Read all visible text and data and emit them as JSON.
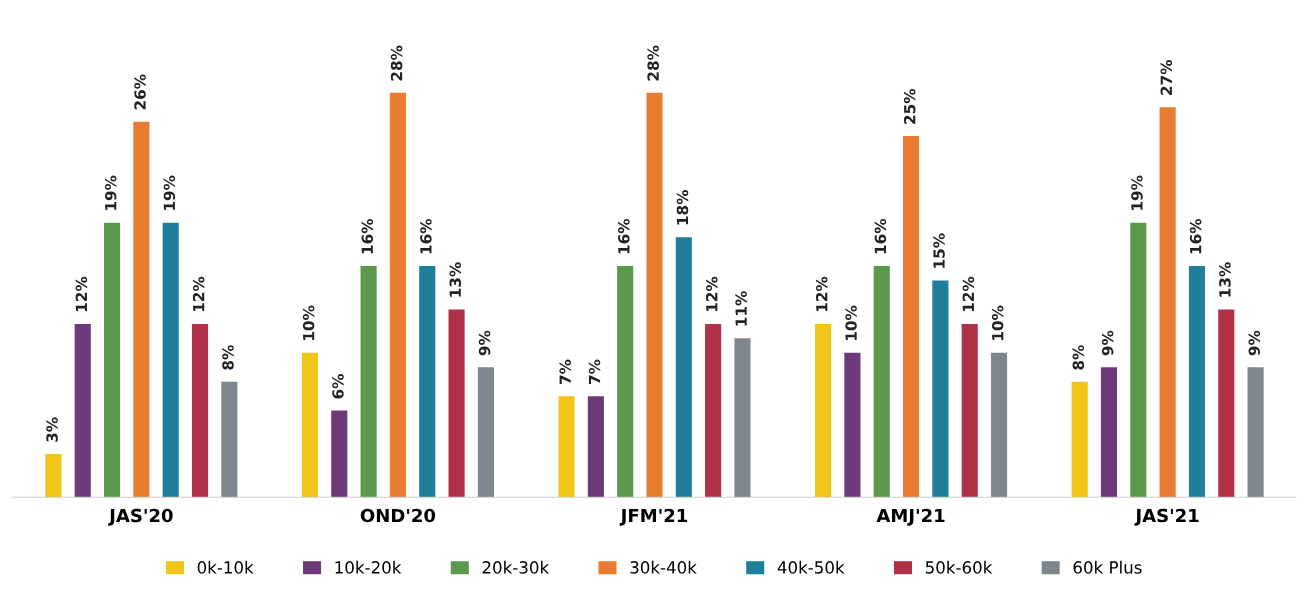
{
  "chart_data": {
    "type": "bar",
    "categories": [
      "JAS'20",
      "OND'20",
      "JFM'21",
      "AMJ'21",
      "JAS'21"
    ],
    "series": [
      {
        "name": "0k-10k",
        "color": "#f0c419",
        "values": [
          3,
          10,
          7,
          12,
          8
        ],
        "value_labels": [
          "3%",
          "10%",
          "7%",
          "12%",
          "8%"
        ]
      },
      {
        "name": "10k-20k",
        "color": "#6c3a78",
        "values": [
          12,
          6,
          7,
          10,
          9
        ],
        "value_labels": [
          "12%",
          "6%",
          "7%",
          "10%",
          "9%"
        ]
      },
      {
        "name": "20k-30k",
        "color": "#5b9a4c",
        "values": [
          19,
          16,
          16,
          16,
          19
        ],
        "value_labels": [
          "19%",
          "16%",
          "16%",
          "16%",
          "19%"
        ]
      },
      {
        "name": "30k-40k",
        "color": "#e97c30",
        "values": [
          26,
          28,
          28,
          25,
          27
        ],
        "value_labels": [
          "26%",
          "28%",
          "28%",
          "25%",
          "27%"
        ]
      },
      {
        "name": "40k-50k",
        "color": "#1f7f9b",
        "values": [
          19,
          16,
          18,
          15,
          16
        ],
        "value_labels": [
          "19%",
          "16%",
          "18%",
          "15%",
          "16%"
        ]
      },
      {
        "name": "50k-60k",
        "color": "#b03048",
        "values": [
          12,
          13,
          12,
          12,
          13
        ],
        "value_labels": [
          "12%",
          "13%",
          "12%",
          "12%",
          "13%"
        ]
      },
      {
        "name": "60k Plus",
        "color": "#7d878d",
        "values": [
          8,
          9,
          11,
          10,
          9
        ],
        "value_labels": [
          "8%",
          "9%",
          "11%",
          "10%",
          "9%"
        ]
      }
    ],
    "legend": "bottom",
    "grid": false
  }
}
